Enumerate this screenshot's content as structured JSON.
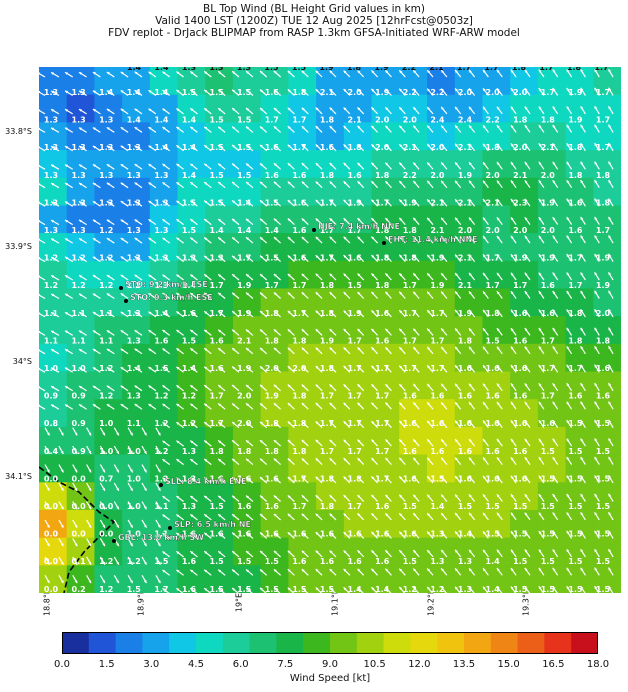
{
  "title": {
    "line1": "BL Top Wind (BL Height Grid values in km)",
    "line2": "Valid 1400 LST (1200Z) TUE 12 Aug 2025 [12hrFcst@0503z]",
    "line3": "FDV replot - DrJack BLIPMAP from RASP 1.3km GFSA-Initiated WRF-ARW model"
  },
  "lat_labels": [
    "33.8°S",
    "33.9°S",
    "34°S",
    "34.1°S"
  ],
  "lon_labels": [
    "18.8°E",
    "18.9°E",
    "19°E",
    "19.1°E",
    "19.2°E",
    "19.3°E"
  ],
  "colorbar": {
    "label": "Wind Speed [kt]",
    "ticks": [
      "0.0",
      "1.5",
      "3.0",
      "4.5",
      "6.0",
      "7.5",
      "9.0",
      "10.5",
      "12.0",
      "13.5",
      "15.0",
      "16.5",
      "18.0"
    ],
    "colors": [
      "#1a2f9e",
      "#1f55d6",
      "#1b7fe8",
      "#16a3ec",
      "#10c8e6",
      "#0fd8c0",
      "#1ccd9a",
      "#1cc271",
      "#19b548",
      "#3cb81e",
      "#72c415",
      "#a2d20f",
      "#cfdc0c",
      "#e5d80c",
      "#f0c40e",
      "#f2a611",
      "#ef8515",
      "#ec5f18",
      "#e7331b",
      "#c80f1c"
    ],
    "unit": "kt"
  },
  "stations": [
    {
      "label": "HJE: 7.4 km/h NNE"
    },
    {
      "label": "FHT: 11.4 km/h NNE"
    },
    {
      "label": "STO: 9.2 km/h ESE"
    },
    {
      "label": "STO: 9.3 km/h ESE"
    },
    {
      "label": "SLL: 8.4 km/h ENE"
    },
    {
      "label": "SLP: 6.5 km/h NE"
    },
    {
      "label": "GBL: 13.0 km/h SW"
    }
  ],
  "grid_values": [
    [
      "1.3",
      "1.3",
      "1.4",
      "1.4",
      "1.4",
      "1.5",
      "1.5",
      "1.5",
      "1.6",
      "1.8",
      "2.1",
      "2.0",
      "1.9",
      "2.2",
      "2.2",
      "2.0",
      "2.0",
      "2.0",
      "1.7",
      "1.9",
      "1.7"
    ],
    [
      "1.3",
      "1.3",
      "1.3",
      "1.4",
      "1.4",
      "1.4",
      "1.5",
      "1.5",
      "1.7",
      "1.7",
      "1.8",
      "2.1",
      "2.0",
      "2.0",
      "2.4",
      "2.4",
      "2.2",
      "1.8",
      "1.8",
      "1.9",
      "1.7"
    ],
    [
      "1.3",
      "1.3",
      "1.3",
      "1.3",
      "1.4",
      "1.4",
      "1.5",
      "1.5",
      "1.6",
      "1.7",
      "1.6",
      "1.8",
      "2.0",
      "2.1",
      "2.0",
      "2.1",
      "1.8",
      "2.0",
      "2.1",
      "1.8",
      "1.7"
    ],
    [
      "1.3",
      "1.3",
      "1.3",
      "1.3",
      "1.3",
      "1.4",
      "1.5",
      "1.5",
      "1.6",
      "1.6",
      "1.8",
      "1.6",
      "1.8",
      "2.2",
      "2.0",
      "1.9",
      "2.0",
      "2.1",
      "2.0",
      "1.8",
      "1.8"
    ],
    [
      "1.3",
      "1.3",
      "1.3",
      "1.3",
      "1.3",
      "1.5",
      "1.5",
      "1.4",
      "1.5",
      "1.6",
      "1.7",
      "1.9",
      "1.7",
      "1.9",
      "2.1",
      "2.1",
      "2.1",
      "2.3",
      "1.9",
      "1.6",
      "1.8"
    ],
    [
      "1.3",
      "1.3",
      "1.2",
      "1.3",
      "1.3",
      "1.5",
      "1.4",
      "1.4",
      "1.4",
      "1.6",
      "1.7",
      "1.7",
      "1.8",
      "1.8",
      "2.1",
      "2.0",
      "2.0",
      "2.0",
      "2.0",
      "1.6",
      "1.7"
    ],
    [
      "1.2",
      "1.2",
      "1.2",
      "1.3",
      "1.3",
      "1.3",
      "1.3",
      "1.7",
      "1.5",
      "1.6",
      "1.7",
      "1.6",
      "1.8",
      "1.8",
      "1.9",
      "2.1",
      "1.7",
      "1.9",
      "1.9",
      "1.7",
      "1.9"
    ],
    [
      "1.2",
      "1.2",
      "1.2",
      "1.2",
      "1.3",
      "1.4",
      "1.7",
      "1.9",
      "1.7",
      "1.7",
      "1.8",
      "1.5",
      "1.8",
      "1.7",
      "1.9",
      "2.1",
      "1.7",
      "1.7",
      "1.6",
      "1.7",
      "1.9"
    ],
    [
      "1.1",
      "1.1",
      "1.1",
      "1.3",
      "1.4",
      "1.6",
      "1.7",
      "1.9",
      "1.8",
      "1.7",
      "1.8",
      "1.9",
      "1.6",
      "1.7",
      "1.7",
      "1.9",
      "1.8",
      "1.6",
      "1.6",
      "1.8",
      "2.0"
    ],
    [
      "1.1",
      "1.1",
      "1.1",
      "1.3",
      "1.6",
      "1.5",
      "1.6",
      "2.1",
      "1.8",
      "1.8",
      "1.9",
      "1.7",
      "1.6",
      "1.7",
      "1.7",
      "1.8",
      "1.5",
      "1.6",
      "1.7",
      "1.8",
      "1.8"
    ],
    [
      "1.0",
      "1.0",
      "1.2",
      "1.4",
      "1.5",
      "1.4",
      "1.6",
      "1.9",
      "2.0",
      "2.0",
      "1.8",
      "1.7",
      "1.7",
      "1.7",
      "1.7",
      "1.6",
      "1.6",
      "1.6",
      "1.7",
      "1.7",
      "1.6"
    ],
    [
      "0.9",
      "0.9",
      "1.2",
      "1.3",
      "1.2",
      "1.2",
      "1.7",
      "2.0",
      "1.9",
      "1.8",
      "1.7",
      "1.7",
      "1.7",
      "1.6",
      "1.6",
      "1.6",
      "1.6",
      "1.6",
      "1.7",
      "1.6",
      "1.6"
    ],
    [
      "0.8",
      "0.9",
      "1.0",
      "1.1",
      "1.2",
      "1.2",
      "1.7",
      "2.0",
      "1.8",
      "1.8",
      "1.7",
      "1.7",
      "1.7",
      "1.6",
      "1.6",
      "1.6",
      "1.6",
      "1.6",
      "1.6",
      "1.5",
      "1.5"
    ],
    [
      "0.4",
      "0.9",
      "1.0",
      "1.0",
      "1.2",
      "1.3",
      "1.8",
      "1.8",
      "1.8",
      "1.8",
      "1.7",
      "1.7",
      "1.7",
      "1.6",
      "1.6",
      "1.6",
      "1.6",
      "1.6",
      "1.5",
      "1.5",
      "1.5"
    ],
    [
      "0.0",
      "0.0",
      "0.7",
      "1.0",
      "1.2",
      "1.3",
      "1.6",
      "1.6",
      "1.6",
      "1.7",
      "1.8",
      "1.8",
      "1.7",
      "1.6",
      "1.5",
      "1.6",
      "1.6",
      "1.6",
      "1.5",
      "1.5",
      "1.5"
    ],
    [
      "0.0",
      "0.0",
      "0.0",
      "1.0",
      "1.1",
      "1.3",
      "1.5",
      "1.6",
      "1.6",
      "1.7",
      "1.8",
      "1.7",
      "1.6",
      "1.5",
      "1.4",
      "1.5",
      "1.5",
      "1.5",
      "1.5",
      "1.5",
      "1.5"
    ],
    [
      "0.0",
      "0.0",
      "0.0",
      "1.0",
      "1.1",
      "1.6",
      "1.6",
      "1.6",
      "1.6",
      "1.6",
      "1.6",
      "1.6",
      "1.6",
      "1.6",
      "1.3",
      "1.4",
      "1.5",
      "1.5",
      "1.5",
      "1.5",
      "1.5"
    ],
    [
      "0.0",
      "0.1",
      "1.2",
      "1.2",
      "1.5",
      "1.6",
      "1.5",
      "1.5",
      "1.5",
      "1.6",
      "1.6",
      "1.6",
      "1.6",
      "1.5",
      "1.3",
      "1.3",
      "1.4",
      "1.5",
      "1.5",
      "1.5",
      "1.5"
    ],
    [
      "0.0",
      "0.2",
      "1.2",
      "1.5",
      "1.7",
      "1.6",
      "1.5",
      "1.5",
      "1.5",
      "1.5",
      "1.5",
      "1.4",
      "1.4",
      "1.2",
      "1.2",
      "1.3",
      "1.4",
      "1.5",
      "1.5",
      "1.5",
      "1.5"
    ]
  ],
  "top_row_values": [
    "1.4",
    "1.4",
    "1.3",
    "1.3",
    "1.3",
    "1.5",
    "1.5",
    "1.9",
    "1.8",
    "1.9",
    "2.2",
    "2.1",
    "1.7",
    "1.7",
    "1.8",
    "1.7",
    "1.8",
    "1.7"
  ],
  "speed_field": {
    "description_kt": "approximate wind speed per cell (kt), rows top to bottom",
    "rows": [
      [
        2.5,
        2.0,
        3.0,
        3.5,
        4.5,
        5.5,
        6.5,
        6.0,
        5.5,
        4.5,
        3.5,
        3.0,
        3.5,
        3.0,
        2.5,
        3.0,
        3.5,
        4.0,
        5.0,
        5.0,
        5.5
      ],
      [
        2.5,
        1.5,
        2.0,
        3.0,
        3.5,
        4.5,
        5.5,
        5.5,
        5.0,
        4.0,
        3.0,
        3.0,
        4.0,
        4.0,
        3.0,
        3.5,
        4.0,
        4.5,
        5.0,
        4.5,
        5.0
      ],
      [
        3.0,
        2.0,
        2.0,
        2.5,
        3.0,
        4.0,
        4.5,
        4.5,
        4.5,
        4.0,
        3.5,
        4.0,
        4.5,
        4.5,
        4.0,
        4.5,
        5.0,
        5.5,
        5.5,
        5.0,
        5.0
      ],
      [
        4.0,
        3.0,
        3.0,
        3.0,
        3.5,
        4.0,
        4.0,
        4.0,
        4.5,
        4.5,
        4.5,
        5.0,
        5.5,
        5.5,
        5.5,
        6.0,
        6.5,
        6.5,
        6.5,
        6.0,
        5.5
      ],
      [
        4.5,
        3.5,
        2.5,
        2.5,
        3.5,
        4.5,
        4.5,
        4.5,
        5.5,
        6.0,
        5.5,
        5.5,
        6.5,
        7.0,
        7.0,
        7.0,
        7.5,
        7.5,
        7.0,
        6.5,
        6.0
      ],
      [
        3.5,
        2.5,
        2.0,
        2.5,
        4.0,
        5.0,
        5.5,
        5.5,
        6.5,
        7.0,
        7.0,
        7.0,
        7.5,
        7.5,
        8.0,
        7.5,
        7.0,
        7.5,
        7.0,
        6.5,
        6.5
      ],
      [
        5.0,
        4.0,
        3.0,
        3.5,
        5.0,
        6.0,
        6.5,
        7.0,
        7.5,
        8.0,
        8.0,
        7.5,
        8.0,
        8.0,
        8.0,
        7.5,
        7.0,
        7.0,
        7.0,
        6.5,
        6.5
      ],
      [
        6.0,
        5.0,
        4.5,
        5.0,
        6.0,
        7.0,
        7.5,
        8.0,
        8.0,
        8.5,
        8.5,
        8.5,
        8.5,
        8.5,
        8.5,
        8.0,
        7.5,
        7.5,
        7.0,
        7.0,
        6.5
      ],
      [
        6.0,
        5.5,
        5.5,
        6.0,
        6.5,
        7.5,
        8.0,
        8.5,
        9.0,
        9.0,
        9.0,
        9.0,
        9.0,
        9.0,
        9.0,
        8.5,
        8.5,
        8.0,
        8.0,
        7.5,
        7.0
      ],
      [
        5.5,
        5.5,
        6.5,
        7.0,
        7.5,
        8.0,
        8.5,
        9.0,
        9.0,
        9.5,
        9.5,
        9.5,
        9.5,
        9.5,
        9.5,
        9.0,
        8.5,
        8.5,
        8.5,
        8.0,
        8.0
      ],
      [
        5.0,
        6.0,
        7.0,
        7.5,
        8.0,
        8.5,
        9.0,
        9.5,
        9.5,
        10.0,
        10.0,
        10.0,
        10.0,
        10.0,
        10.0,
        9.5,
        9.0,
        9.0,
        9.0,
        8.5,
        8.5
      ],
      [
        5.5,
        6.5,
        7.0,
        7.5,
        8.0,
        8.5,
        9.0,
        9.5,
        10.0,
        10.0,
        10.0,
        10.5,
        10.5,
        10.5,
        10.5,
        10.5,
        10.0,
        9.5,
        9.0,
        9.0,
        9.0
      ],
      [
        6.0,
        7.0,
        7.5,
        7.5,
        8.0,
        8.5,
        9.0,
        9.5,
        10.0,
        10.0,
        10.5,
        10.5,
        10.5,
        11.0,
        11.0,
        10.5,
        10.5,
        10.0,
        9.5,
        9.5,
        9.0
      ],
      [
        6.5,
        7.0,
        7.5,
        7.5,
        8.0,
        8.0,
        8.5,
        9.0,
        9.5,
        10.0,
        10.0,
        10.5,
        10.5,
        11.0,
        11.0,
        11.0,
        10.5,
        10.0,
        10.0,
        9.5,
        9.5
      ],
      [
        8.0,
        7.5,
        7.0,
        7.0,
        7.5,
        8.0,
        8.5,
        9.0,
        9.5,
        10.0,
        10.0,
        10.5,
        10.5,
        10.5,
        11.0,
        10.5,
        10.5,
        10.0,
        10.0,
        9.5,
        9.5
      ],
      [
        11.0,
        9.5,
        7.0,
        6.5,
        7.0,
        7.5,
        8.0,
        8.5,
        9.0,
        9.5,
        10.0,
        10.0,
        10.5,
        10.5,
        10.5,
        10.0,
        10.0,
        10.0,
        9.5,
        9.5,
        9.5
      ],
      [
        13.5,
        11.5,
        8.0,
        6.5,
        7.0,
        7.5,
        8.0,
        8.5,
        9.0,
        9.5,
        9.5,
        10.0,
        10.0,
        10.0,
        10.0,
        10.0,
        10.0,
        9.5,
        9.5,
        9.5,
        9.0
      ],
      [
        12.5,
        10.5,
        7.5,
        6.5,
        7.0,
        7.5,
        8.0,
        8.5,
        8.5,
        9.0,
        9.5,
        9.5,
        9.5,
        9.5,
        9.5,
        9.5,
        9.5,
        9.5,
        9.0,
        9.0,
        9.0
      ],
      [
        10.0,
        8.5,
        7.0,
        6.5,
        7.0,
        7.5,
        7.5,
        8.0,
        8.5,
        9.0,
        9.0,
        9.0,
        9.0,
        9.0,
        9.0,
        9.0,
        9.0,
        9.0,
        9.0,
        9.0,
        9.0
      ]
    ]
  }
}
